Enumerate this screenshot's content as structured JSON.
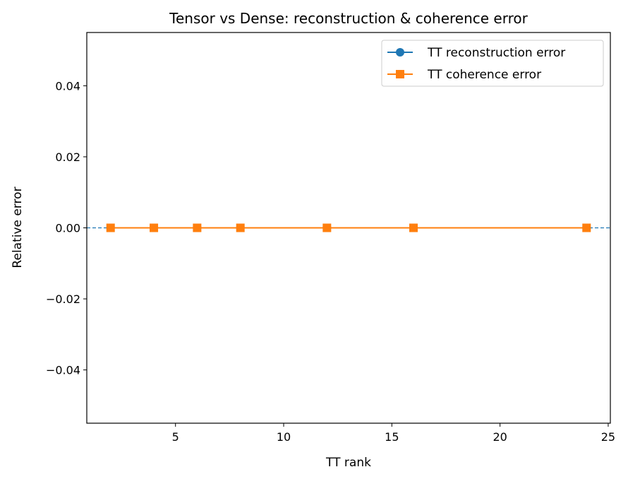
{
  "chart_data": {
    "type": "line",
    "title": "Tensor vs Dense: reconstruction & coherence error",
    "xlabel": "TT rank",
    "ylabel": "Relative error",
    "xlim": [
      0.9,
      25.1
    ],
    "ylim": [
      -0.055,
      0.055
    ],
    "xticks": [
      5,
      10,
      15,
      20,
      25
    ],
    "yticks": [
      -0.04,
      -0.02,
      0.0,
      0.02,
      0.04
    ],
    "xtick_labels": [
      "5",
      "10",
      "15",
      "20",
      "25"
    ],
    "ytick_labels": [
      "−0.04",
      "−0.02",
      "0.00",
      "0.02",
      "0.04"
    ],
    "grid": false,
    "legend_position": "top-right",
    "x": [
      2,
      4,
      6,
      8,
      12,
      16,
      24
    ],
    "series": [
      {
        "name": "TT reconstruction error",
        "values": [
          0,
          0,
          0,
          0,
          0,
          0,
          0
        ],
        "color": "#1f77b4",
        "marker": "circle"
      },
      {
        "name": "TT coherence error",
        "values": [
          0,
          0,
          0,
          0,
          0,
          0,
          0
        ],
        "color": "#ff7f0e",
        "marker": "square"
      }
    ],
    "reference_line": {
      "y": 0,
      "style": "dashed",
      "color": "#1f77b4"
    }
  }
}
